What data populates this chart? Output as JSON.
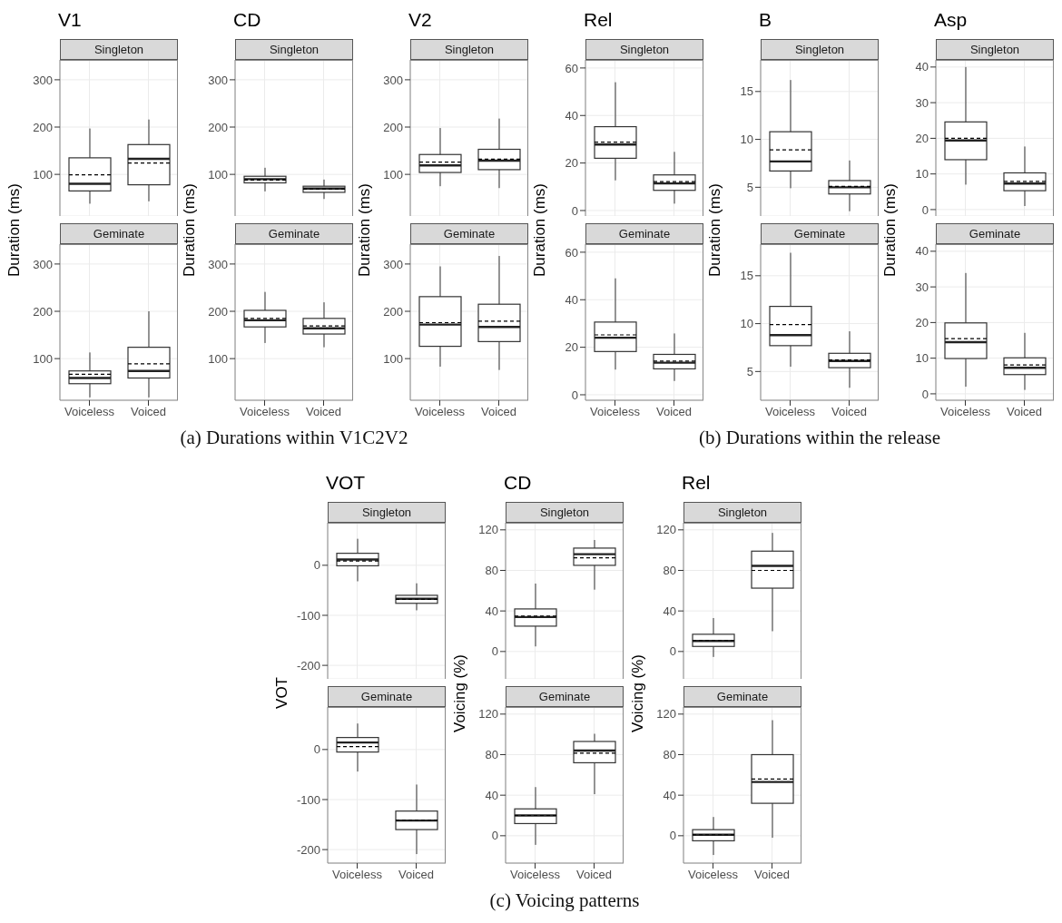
{
  "chart_data": [
    {
      "type": "box",
      "title": "V1",
      "subtitle": "Singleton",
      "ylabel": "Duration (ms)",
      "annotations": [
        "(a) Durations within V1C2V2"
      ],
      "categories": [
        "Voiceless",
        "Voiced"
      ],
      "ylim": [
        12,
        342
      ],
      "yticks": [
        100,
        200,
        300
      ],
      "tick_labels": "y",
      "grid": true,
      "boxes": [
        {
          "low": 38,
          "q1": 65,
          "median": 80,
          "q3": 135,
          "high": 197,
          "mean": 99
        },
        {
          "low": 43,
          "q1": 78,
          "median": 133,
          "q3": 163,
          "high": 216,
          "mean": 124
        }
      ]
    },
    {
      "type": "box",
      "subtitle": "Geminate",
      "categories": [
        "Voiceless",
        "Voiced"
      ],
      "ylim": [
        12,
        342
      ],
      "yticks": [
        100,
        200,
        300
      ],
      "grid": true,
      "boxes": [
        {
          "low": 18,
          "q1": 47,
          "median": 59,
          "q3": 74,
          "high": 113,
          "mean": 67
        },
        {
          "low": 18,
          "q1": 59,
          "median": 74,
          "q3": 124,
          "high": 200,
          "mean": 89
        }
      ]
    },
    {
      "type": "box",
      "title": "CD",
      "subtitle": "Singleton",
      "ylabel": "Duration (ms)",
      "categories": [
        "Voiceless",
        "Voiced"
      ],
      "ylim": [
        12,
        342
      ],
      "yticks": [
        100,
        200,
        300
      ],
      "tick_labels": "y",
      "grid": true,
      "boxes": [
        {
          "low": 64,
          "q1": 82,
          "median": 90,
          "q3": 96,
          "high": 114,
          "mean": 88
        },
        {
          "low": 48,
          "q1": 62,
          "median": 70,
          "q3": 75,
          "high": 89,
          "mean": 69
        }
      ]
    },
    {
      "type": "box",
      "subtitle": "Geminate",
      "categories": [
        "Voiceless",
        "Voiced"
      ],
      "ylim": [
        12,
        342
      ],
      "yticks": [
        100,
        200,
        300
      ],
      "grid": true,
      "boxes": [
        {
          "low": 133,
          "q1": 167,
          "median": 181,
          "q3": 202,
          "high": 241,
          "mean": 185
        },
        {
          "low": 124,
          "q1": 152,
          "median": 164,
          "q3": 185,
          "high": 219,
          "mean": 169
        }
      ]
    },
    {
      "type": "box",
      "title": "V2",
      "subtitle": "Singleton",
      "ylabel": "Duration (ms)",
      "categories": [
        "Voiceless",
        "Voiced"
      ],
      "ylim": [
        12,
        342
      ],
      "yticks": [
        100,
        200,
        300
      ],
      "tick_labels": "y",
      "grid": true,
      "boxes": [
        {
          "low": 75,
          "q1": 104,
          "median": 119,
          "q3": 142,
          "high": 198,
          "mean": 126
        },
        {
          "low": 71,
          "q1": 110,
          "median": 129,
          "q3": 153,
          "high": 218,
          "mean": 132
        }
      ]
    },
    {
      "type": "box",
      "subtitle": "Geminate",
      "categories": [
        "Voiceless",
        "Voiced"
      ],
      "ylim": [
        12,
        342
      ],
      "yticks": [
        100,
        200,
        300
      ],
      "grid": true,
      "boxes": [
        {
          "low": 83,
          "q1": 126,
          "median": 172,
          "q3": 231,
          "high": 295,
          "mean": 176
        },
        {
          "low": 76,
          "q1": 136,
          "median": 167,
          "q3": 215,
          "high": 317,
          "mean": 179
        }
      ]
    },
    {
      "type": "box",
      "title": "Rel",
      "subtitle": "Singleton",
      "ylabel": "Duration (ms)",
      "annotations": [
        "(b) Durations within the release"
      ],
      "categories": [
        "Voiceless",
        "Voiced"
      ],
      "ylim": [
        -2.3,
        63.4
      ],
      "yticks": [
        0,
        20,
        40,
        60
      ],
      "tick_labels": "y",
      "grid": true,
      "boxes": [
        {
          "low": 12.7,
          "q1": 22,
          "median": 27.8,
          "q3": 35.3,
          "high": 54,
          "mean": 28.8
        },
        {
          "low": 2.9,
          "q1": 8.5,
          "median": 11.4,
          "q3": 15,
          "high": 24.7,
          "mean": 12.2
        }
      ]
    },
    {
      "type": "box",
      "subtitle": "Geminate",
      "categories": [
        "Voiceless",
        "Voiced"
      ],
      "ylim": [
        -2.3,
        63.4
      ],
      "yticks": [
        0,
        20,
        40,
        60
      ],
      "grid": true,
      "boxes": [
        {
          "low": 10.6,
          "q1": 18.2,
          "median": 24,
          "q3": 30.6,
          "high": 49,
          "mean": 25.2
        },
        {
          "low": 5.8,
          "q1": 10.9,
          "median": 13.5,
          "q3": 17,
          "high": 25.8,
          "mean": 14.2
        }
      ]
    },
    {
      "type": "box",
      "title": "B",
      "subtitle": "Singleton",
      "ylabel": "Duration (ms)",
      "categories": [
        "Voiceless",
        "Voiced"
      ],
      "ylim": [
        2,
        18.3
      ],
      "yticks": [
        5,
        10,
        15
      ],
      "tick_labels": "y",
      "grid": true,
      "boxes": [
        {
          "low": 4.9,
          "q1": 6.7,
          "median": 7.7,
          "q3": 10.8,
          "high": 16.2,
          "mean": 8.9
        },
        {
          "low": 2.5,
          "q1": 4.3,
          "median": 5,
          "q3": 5.7,
          "high": 7.8,
          "mean": 5.1
        }
      ]
    },
    {
      "type": "box",
      "subtitle": "Geminate",
      "categories": [
        "Voiceless",
        "Voiced"
      ],
      "ylim": [
        2,
        18.3
      ],
      "yticks": [
        5,
        10,
        15
      ],
      "grid": true,
      "boxes": [
        {
          "low": 5.5,
          "q1": 7.7,
          "median": 8.8,
          "q3": 11.8,
          "high": 17.4,
          "mean": 9.9
        },
        {
          "low": 3.3,
          "q1": 5.4,
          "median": 6.1,
          "q3": 6.9,
          "high": 9.2,
          "mean": 6.2
        }
      ]
    },
    {
      "type": "box",
      "title": "Asp",
      "subtitle": "Singleton",
      "ylabel": "Duration (ms)",
      "categories": [
        "Voiceless",
        "Voiced"
      ],
      "ylim": [
        -1.8,
        42
      ],
      "yticks": [
        0,
        10,
        20,
        30,
        40
      ],
      "tick_labels": "y",
      "grid": true,
      "boxes": [
        {
          "low": 7,
          "q1": 14,
          "median": 19.4,
          "q3": 24.6,
          "high": 40,
          "mean": 20
        },
        {
          "low": 1,
          "q1": 5.3,
          "median": 7.3,
          "q3": 10.3,
          "high": 17.7,
          "mean": 7.9
        }
      ]
    },
    {
      "type": "box",
      "subtitle": "Geminate",
      "categories": [
        "Voiceless",
        "Voiced"
      ],
      "ylim": [
        -1.8,
        42
      ],
      "yticks": [
        0,
        10,
        20,
        30,
        40
      ],
      "grid": true,
      "boxes": [
        {
          "low": 2,
          "q1": 9.9,
          "median": 14.5,
          "q3": 19.9,
          "high": 33.9,
          "mean": 15.5
        },
        {
          "low": 1.1,
          "q1": 5.4,
          "median": 7.3,
          "q3": 10.1,
          "high": 17.1,
          "mean": 8.1
        }
      ]
    },
    {
      "type": "box",
      "title": "VOT",
      "subtitle": "Singleton",
      "ylabel": "VOT",
      "annotations": [
        "(c) Voicing patterns"
      ],
      "categories": [
        "Voiceless",
        "Voiced"
      ],
      "ylim": [
        -227,
        85
      ],
      "yticks": [
        -200,
        -100,
        0
      ],
      "tick_labels": "y",
      "grid": true,
      "boxes": [
        {
          "low": -32,
          "q1": -1,
          "median": 11.5,
          "q3": 24,
          "high": 53,
          "mean": 8.5
        },
        {
          "low": -90,
          "q1": -76,
          "median": -67,
          "q3": -60,
          "high": -36,
          "mean": -68
        }
      ]
    },
    {
      "type": "box",
      "subtitle": "Geminate",
      "categories": [
        "Voiceless",
        "Voiced"
      ],
      "ylim": [
        -227,
        85
      ],
      "yticks": [
        -200,
        -100,
        0
      ],
      "grid": true,
      "boxes": [
        {
          "low": -44,
          "q1": -5,
          "median": 14,
          "q3": 24,
          "high": 52,
          "mean": 6
        },
        {
          "low": -209,
          "q1": -160,
          "median": -142,
          "q3": -123,
          "high": -70,
          "mean": -141
        }
      ]
    },
    {
      "type": "box",
      "title": "CD",
      "subtitle": "Singleton",
      "ylabel": "Voicing (%)",
      "categories": [
        "Voiceless",
        "Voiced"
      ],
      "ylim": [
        -27,
        127
      ],
      "yticks": [
        0,
        40,
        80,
        120
      ],
      "tick_labels": "y",
      "grid": true,
      "boxes": [
        {
          "low": 5,
          "q1": 25,
          "median": 34,
          "q3": 42,
          "high": 67,
          "mean": 35
        },
        {
          "low": 61,
          "q1": 85,
          "median": 96,
          "q3": 102,
          "high": 110,
          "mean": 92.4
        }
      ]
    },
    {
      "type": "box",
      "subtitle": "Geminate",
      "categories": [
        "Voiceless",
        "Voiced"
      ],
      "ylim": [
        -27,
        127
      ],
      "yticks": [
        0,
        40,
        80,
        120
      ],
      "grid": true,
      "boxes": [
        {
          "low": -9,
          "q1": 12,
          "median": 20,
          "q3": 26.5,
          "high": 48,
          "mean": 20
        },
        {
          "low": 41,
          "q1": 72,
          "median": 84,
          "q3": 93,
          "high": 100.6,
          "mean": 81.5
        }
      ]
    },
    {
      "type": "box",
      "title": "Rel",
      "subtitle": "Singleton",
      "ylabel": "Voicing (%)",
      "categories": [
        "Voiceless",
        "Voiced"
      ],
      "ylim": [
        -27,
        127
      ],
      "yticks": [
        0,
        40,
        80,
        120
      ],
      "tick_labels": "y",
      "grid": true,
      "boxes": [
        {
          "low": -5.4,
          "q1": 5,
          "median": 10.4,
          "q3": 17,
          "high": 33,
          "mean": 11
        },
        {
          "low": 20,
          "q1": 62.5,
          "median": 84.5,
          "q3": 99,
          "high": 117,
          "mean": 80
        }
      ]
    },
    {
      "type": "box",
      "subtitle": "Geminate",
      "categories": [
        "Voiceless",
        "Voiced"
      ],
      "ylim": [
        -27,
        127
      ],
      "yticks": [
        0,
        40,
        80,
        120
      ],
      "grid": true,
      "boxes": [
        {
          "low": -19,
          "q1": -5,
          "median": 1,
          "q3": 6,
          "high": 18.5,
          "mean": 1
        },
        {
          "low": -2,
          "q1": 32,
          "median": 53,
          "q3": 80,
          "high": 114,
          "mean": 56
        }
      ]
    }
  ]
}
